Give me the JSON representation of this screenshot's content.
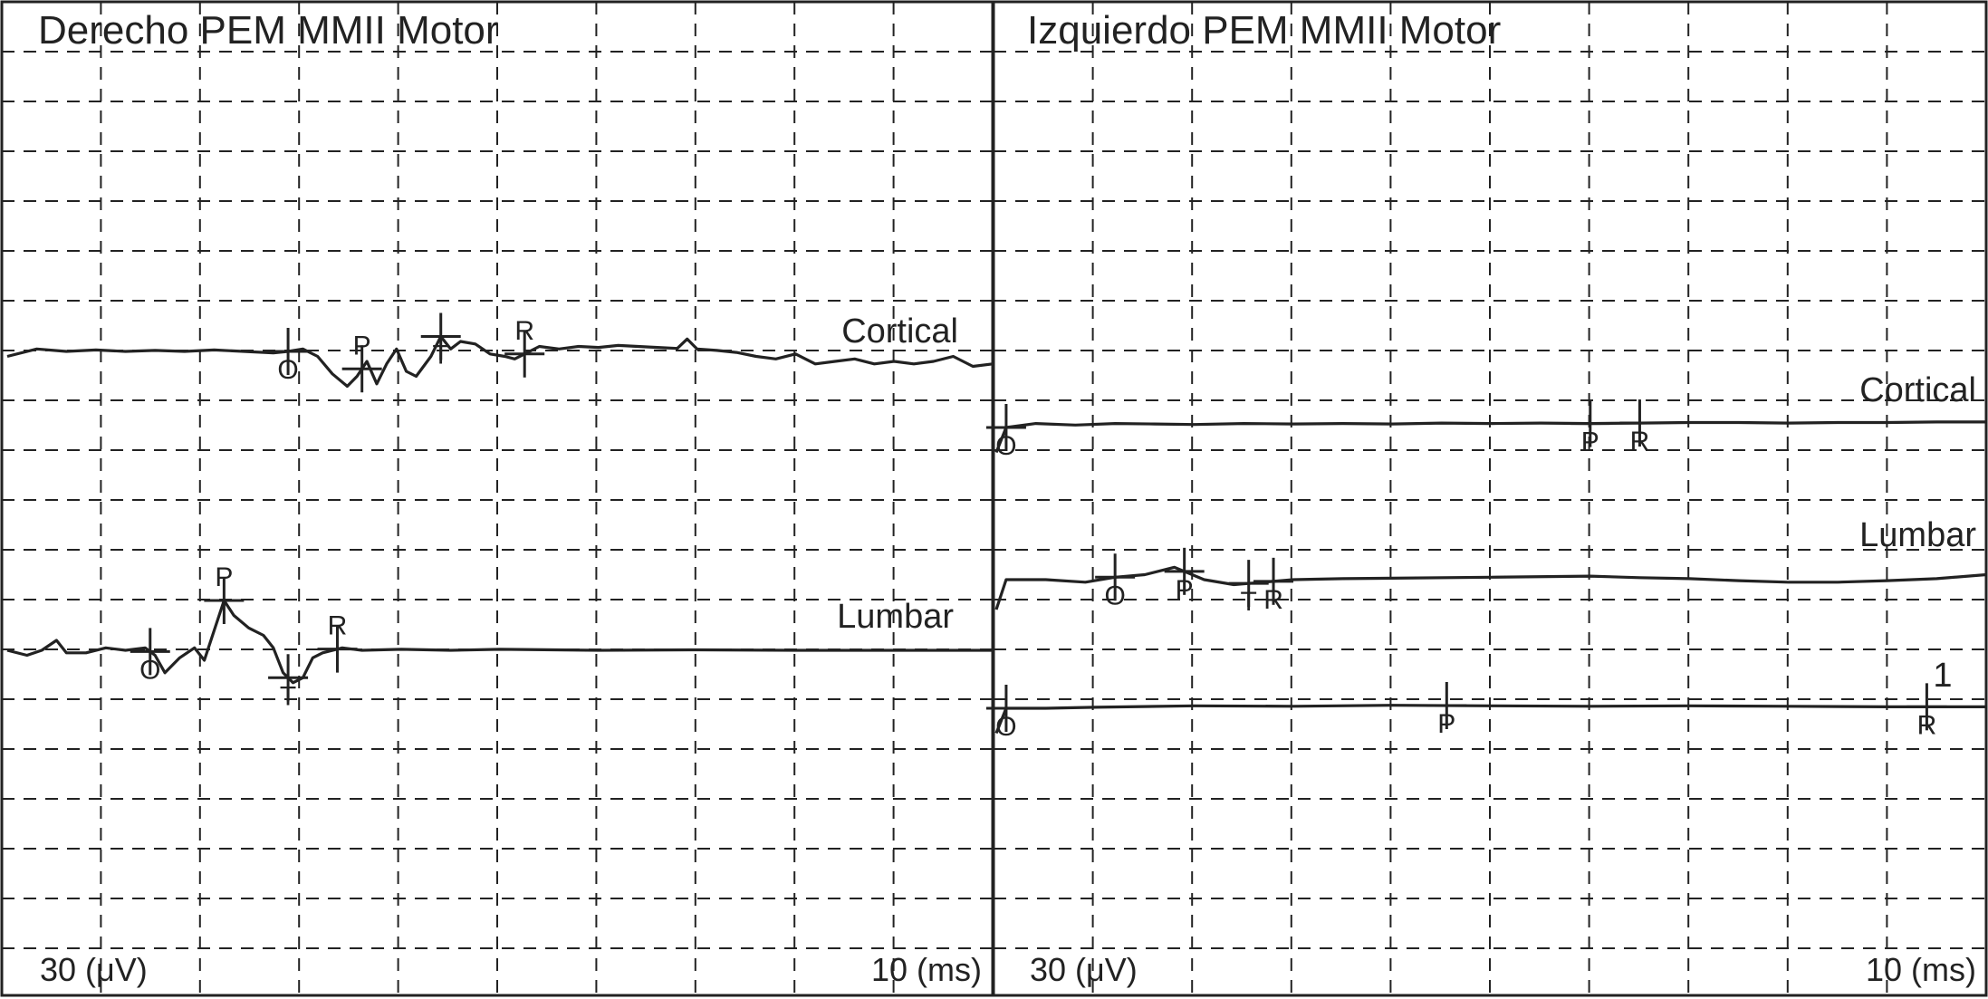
{
  "chart_data": [
    {
      "type": "line",
      "title": "Derecho PEM MMII Motor",
      "amplitude_scale": "30 (μV)",
      "time_scale": "10 (ms)",
      "grid": true,
      "traces": [
        {
          "name": "Cortical",
          "points": [
            [
              0,
              -0.1
            ],
            [
              0.3,
              0.05
            ],
            [
              0.6,
              0.0
            ],
            [
              0.9,
              0.03
            ],
            [
              1.2,
              0.0
            ],
            [
              1.5,
              0.02
            ],
            [
              1.8,
              0.0
            ],
            [
              2.1,
              0.03
            ],
            [
              2.4,
              0.0
            ],
            [
              2.7,
              -0.03
            ],
            [
              2.85,
              0.0
            ],
            [
              3.0,
              0.05
            ],
            [
              3.15,
              -0.1
            ],
            [
              3.3,
              -0.45
            ],
            [
              3.45,
              -0.7
            ],
            [
              3.55,
              -0.5
            ],
            [
              3.65,
              -0.2
            ],
            [
              3.75,
              -0.65
            ],
            [
              3.85,
              -0.25
            ],
            [
              3.95,
              0.05
            ],
            [
              4.05,
              -0.4
            ],
            [
              4.15,
              -0.5
            ],
            [
              4.3,
              -0.1
            ],
            [
              4.4,
              0.3
            ],
            [
              4.5,
              0.05
            ],
            [
              4.6,
              0.2
            ],
            [
              4.75,
              0.15
            ],
            [
              4.9,
              -0.05
            ],
            [
              5.05,
              -0.1
            ],
            [
              5.15,
              -0.15
            ],
            [
              5.25,
              -0.05
            ],
            [
              5.4,
              0.1
            ],
            [
              5.6,
              0.05
            ],
            [
              5.8,
              0.1
            ],
            [
              6.0,
              0.08
            ],
            [
              6.2,
              0.12
            ],
            [
              6.4,
              0.1
            ],
            [
              6.6,
              0.08
            ],
            [
              6.8,
              0.06
            ],
            [
              6.9,
              0.25
            ],
            [
              7.0,
              0.05
            ],
            [
              7.2,
              0.02
            ],
            [
              7.4,
              -0.02
            ],
            [
              7.6,
              -0.1
            ],
            [
              7.8,
              -0.15
            ],
            [
              8.0,
              -0.05
            ],
            [
              8.2,
              -0.25
            ],
            [
              8.4,
              -0.2
            ],
            [
              8.6,
              -0.15
            ],
            [
              8.8,
              -0.25
            ],
            [
              9.0,
              -0.2
            ],
            [
              9.2,
              -0.25
            ],
            [
              9.4,
              -0.2
            ],
            [
              9.6,
              -0.1
            ],
            [
              9.8,
              -0.3
            ],
            [
              10.0,
              -0.25
            ]
          ],
          "markers": [
            {
              "label": "O",
              "x": 2.85
            },
            {
              "label": "P",
              "x": 3.6
            },
            {
              "label": "T",
              "x": 4.4
            },
            {
              "label": "R",
              "x": 5.25
            }
          ]
        },
        {
          "name": "Lumbar",
          "points": [
            [
              0,
              0.0
            ],
            [
              0.2,
              -0.1
            ],
            [
              0.35,
              0.0
            ],
            [
              0.5,
              0.2
            ],
            [
              0.6,
              -0.05
            ],
            [
              0.8,
              -0.05
            ],
            [
              1.0,
              0.05
            ],
            [
              1.2,
              0.0
            ],
            [
              1.4,
              0.05
            ],
            [
              1.5,
              -0.1
            ],
            [
              1.6,
              -0.45
            ],
            [
              1.75,
              -0.15
            ],
            [
              1.9,
              0.05
            ],
            [
              2.0,
              -0.2
            ],
            [
              2.1,
              0.4
            ],
            [
              2.2,
              1.0
            ],
            [
              2.3,
              0.7
            ],
            [
              2.45,
              0.45
            ],
            [
              2.6,
              0.3
            ],
            [
              2.7,
              0.05
            ],
            [
              2.8,
              -0.45
            ],
            [
              2.9,
              -0.65
            ],
            [
              3.0,
              -0.55
            ],
            [
              3.1,
              -0.15
            ],
            [
              3.2,
              -0.05
            ],
            [
              3.4,
              0.05
            ],
            [
              3.6,
              0.0
            ],
            [
              4.0,
              0.02
            ],
            [
              4.5,
              0.0
            ],
            [
              5.0,
              0.02
            ],
            [
              6.0,
              0.0
            ],
            [
              7.0,
              0.01
            ],
            [
              8.0,
              0.0
            ],
            [
              9.0,
              0.0
            ],
            [
              10.0,
              0.0
            ]
          ],
          "markers": [
            {
              "label": "O",
              "x": 1.45
            },
            {
              "label": "P",
              "x": 2.2
            },
            {
              "label": "T",
              "x": 2.85
            },
            {
              "label": "R",
              "x": 3.35
            }
          ]
        }
      ]
    },
    {
      "type": "line",
      "title": "Izquierdo PEM MMII Motor",
      "amplitude_scale": "30 (μV)",
      "time_scale": "10 (ms)",
      "grid": true,
      "traces": [
        {
          "name": "Cortical",
          "points": [
            [
              0,
              -0.5
            ],
            [
              0.1,
              0.0
            ],
            [
              0.4,
              0.08
            ],
            [
              0.8,
              0.05
            ],
            [
              1.2,
              0.08
            ],
            [
              1.6,
              0.07
            ],
            [
              2.0,
              0.06
            ],
            [
              2.5,
              0.08
            ],
            [
              3.0,
              0.07
            ],
            [
              3.5,
              0.08
            ],
            [
              4.0,
              0.07
            ],
            [
              4.5,
              0.09
            ],
            [
              5.0,
              0.08
            ],
            [
              5.5,
              0.09
            ],
            [
              6.0,
              0.08
            ],
            [
              6.5,
              0.09
            ],
            [
              7.0,
              0.1
            ],
            [
              7.5,
              0.1
            ],
            [
              8.0,
              0.09
            ],
            [
              8.5,
              0.1
            ],
            [
              9.0,
              0.1
            ],
            [
              9.5,
              0.11
            ],
            [
              10.0,
              0.11
            ]
          ],
          "markers": [
            {
              "label": "O",
              "x": 0.1
            },
            {
              "label": "P",
              "x": 6.0
            },
            {
              "label": "R",
              "x": 6.5
            }
          ]
        },
        {
          "name": "Lumbar",
          "points": [
            [
              0,
              -0.6
            ],
            [
              0.1,
              0.0
            ],
            [
              0.5,
              0.0
            ],
            [
              0.9,
              -0.05
            ],
            [
              1.2,
              0.05
            ],
            [
              1.5,
              0.1
            ],
            [
              1.8,
              0.25
            ],
            [
              2.1,
              0.0
            ],
            [
              2.4,
              -0.1
            ],
            [
              2.7,
              -0.05
            ],
            [
              3.0,
              0.0
            ],
            [
              3.5,
              0.02
            ],
            [
              4.0,
              0.03
            ],
            [
              5.0,
              0.05
            ],
            [
              6.0,
              0.07
            ],
            [
              6.5,
              0.04
            ],
            [
              7.0,
              0.02
            ],
            [
              7.5,
              -0.02
            ],
            [
              8.0,
              -0.05
            ],
            [
              8.5,
              -0.05
            ],
            [
              9.0,
              -0.02
            ],
            [
              9.5,
              0.02
            ],
            [
              10.0,
              0.1
            ]
          ],
          "markers": [
            {
              "label": "O",
              "x": 1.2
            },
            {
              "label": "P",
              "x": 1.9
            },
            {
              "label": "T",
              "x": 2.55
            },
            {
              "label": "R",
              "x": 2.8
            }
          ]
        },
        {
          "name": "1",
          "points": [
            [
              0,
              -0.5
            ],
            [
              0.1,
              0.0
            ],
            [
              0.5,
              0.0
            ],
            [
              1.0,
              0.02
            ],
            [
              2.0,
              0.05
            ],
            [
              3.0,
              0.04
            ],
            [
              4.0,
              0.06
            ],
            [
              5.0,
              0.05
            ],
            [
              6.0,
              0.04
            ],
            [
              7.0,
              0.05
            ],
            [
              8.0,
              0.04
            ],
            [
              9.0,
              0.03
            ],
            [
              10.0,
              0.03
            ]
          ],
          "markers": [
            {
              "label": "O",
              "x": 0.1
            },
            {
              "label": "P",
              "x": 4.55
            },
            {
              "label": "R",
              "x": 9.4
            }
          ]
        }
      ]
    }
  ]
}
